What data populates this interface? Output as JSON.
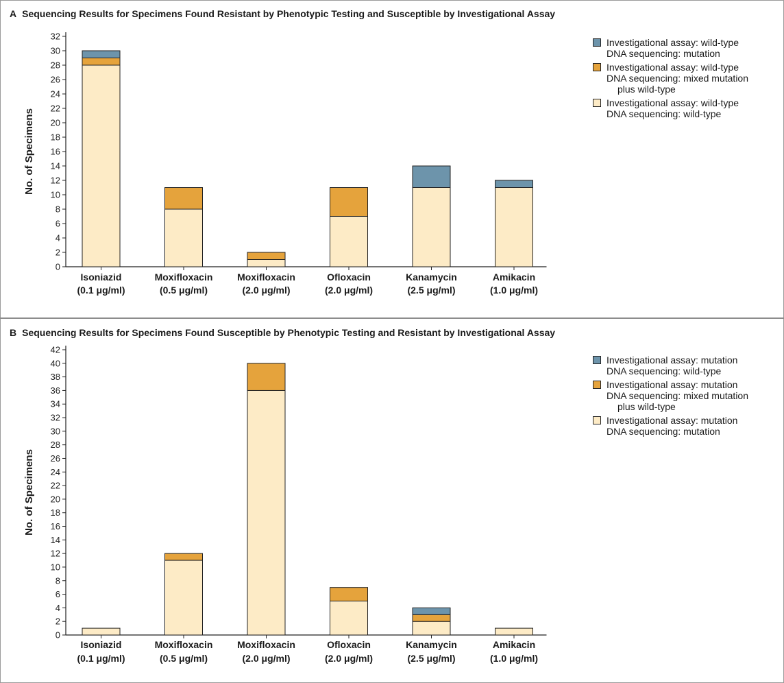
{
  "colors": {
    "mutation_blue": "#6d94ab",
    "mixed_orange": "#e5a33c",
    "wildtype_cream": "#fdebc6",
    "axis": "#222222"
  },
  "chart_data": [
    {
      "panel_letter": "A",
      "type": "bar",
      "stacked": true,
      "title": "Sequencing Results for Specimens Found Resistant by Phenotypic Testing and Susceptible by Investigational Assay",
      "ylabel": "No. of Specimens",
      "xlabel": "",
      "ylim": [
        0,
        32
      ],
      "ytick_step": 2,
      "categories": [
        [
          "Isoniazid",
          "(0.1 μg/ml)"
        ],
        [
          "Moxifloxacin",
          "(0.5 μg/ml)"
        ],
        [
          "Moxifloxacin",
          "(2.0 μg/ml)"
        ],
        [
          "Ofloxacin",
          "(2.0 μg/ml)"
        ],
        [
          "Kanamycin",
          "(2.5 μg/ml)"
        ],
        [
          "Amikacin",
          "(1.0 μg/ml)"
        ]
      ],
      "series": [
        {
          "legend_lines": [
            "Investigational assay: wild-type",
            "DNA sequencing: wild-type"
          ],
          "color": "#fdebc6",
          "values": [
            28,
            8,
            1,
            7,
            11,
            11
          ]
        },
        {
          "legend_lines": [
            "Investigational assay: wild-type",
            "DNA sequencing: mixed mutation",
            "plus wild-type"
          ],
          "color": "#e5a33c",
          "values": [
            1,
            3,
            1,
            4,
            0,
            0
          ]
        },
        {
          "legend_lines": [
            "Investigational assay: wild-type",
            "DNA sequencing: mutation"
          ],
          "color": "#6d94ab",
          "values": [
            1,
            0,
            0,
            0,
            3,
            1
          ]
        }
      ],
      "legend_order": [
        2,
        1,
        0
      ],
      "legend_position": "top-right",
      "grid": false
    },
    {
      "panel_letter": "B",
      "type": "bar",
      "stacked": true,
      "title": "Sequencing Results for Specimens Found Susceptible by Phenotypic Testing and Resistant by Investigational Assay",
      "ylabel": "No. of Specimens",
      "xlabel": "",
      "ylim": [
        0,
        42
      ],
      "ytick_step": 2,
      "categories": [
        [
          "Isoniazid",
          "(0.1 μg/ml)"
        ],
        [
          "Moxifloxacin",
          "(0.5 μg/ml)"
        ],
        [
          "Moxifloxacin",
          "(2.0 μg/ml)"
        ],
        [
          "Ofloxacin",
          "(2.0 μg/ml)"
        ],
        [
          "Kanamycin",
          "(2.5 μg/ml)"
        ],
        [
          "Amikacin",
          "(1.0 μg/ml)"
        ]
      ],
      "series": [
        {
          "legend_lines": [
            "Investigational assay: mutation",
            "DNA sequencing: mutation"
          ],
          "color": "#fdebc6",
          "values": [
            1,
            11,
            36,
            5,
            2,
            1
          ]
        },
        {
          "legend_lines": [
            "Investigational assay: mutation",
            "DNA sequencing: mixed mutation",
            "plus wild-type"
          ],
          "color": "#e5a33c",
          "values": [
            0,
            1,
            4,
            2,
            1,
            0
          ]
        },
        {
          "legend_lines": [
            "Investigational assay: mutation",
            "DNA sequencing: wild-type"
          ],
          "color": "#6d94ab",
          "values": [
            0,
            0,
            0,
            0,
            1,
            0
          ]
        }
      ],
      "legend_order": [
        2,
        1,
        0
      ],
      "legend_position": "top-right",
      "grid": false
    }
  ]
}
